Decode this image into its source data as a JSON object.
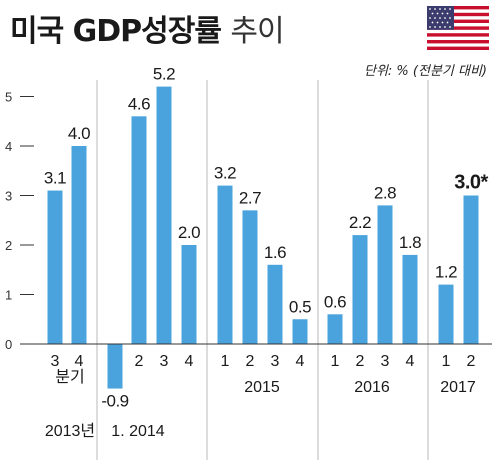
{
  "header": {
    "title_main": "미국 GDP성장률",
    "title_sub": "추이",
    "unit": "단위: % (전분기 대비)"
  },
  "colors": {
    "bar": "#4aa3dd",
    "divider": "#b9b9b9",
    "axis": "#333333"
  },
  "chart_data": {
    "type": "bar",
    "title": "미국 GDP성장률 추이",
    "ylabel": "단위: % (전분기 대비)",
    "ylim": [
      -1.3,
      5.4
    ],
    "yticks": [
      0,
      1,
      2,
      3,
      4,
      5
    ],
    "grid": false,
    "groups": [
      {
        "label_lines": [
          "분기",
          "2013년"
        ],
        "categories": [
          "3",
          "4"
        ],
        "values": [
          3.1,
          4.0
        ],
        "labels": [
          "3.1",
          "4.0"
        ]
      },
      {
        "label_lines": [
          "1. 2014"
        ],
        "categories": [
          "",
          "2",
          "3",
          "4"
        ],
        "values": [
          -0.9,
          4.6,
          5.2,
          2.0
        ],
        "labels": [
          "-0.9",
          "4.6",
          "5.2",
          "2.0"
        ]
      },
      {
        "label_lines": [
          "2015"
        ],
        "categories": [
          "1",
          "2",
          "3",
          "4"
        ],
        "values": [
          3.2,
          2.7,
          1.6,
          0.5
        ],
        "labels": [
          "3.2",
          "2.7",
          "1.6",
          "0.5"
        ]
      },
      {
        "label_lines": [
          "2016"
        ],
        "categories": [
          "1",
          "2",
          "3",
          "4"
        ],
        "values": [
          0.6,
          2.2,
          2.8,
          1.8
        ],
        "labels": [
          "0.6",
          "2.2",
          "2.8",
          "1.8"
        ]
      },
      {
        "label_lines": [
          "2017"
        ],
        "categories": [
          "1",
          "2"
        ],
        "values": [
          1.2,
          3.0
        ],
        "labels": [
          "1.2",
          "3.0*"
        ]
      }
    ]
  }
}
